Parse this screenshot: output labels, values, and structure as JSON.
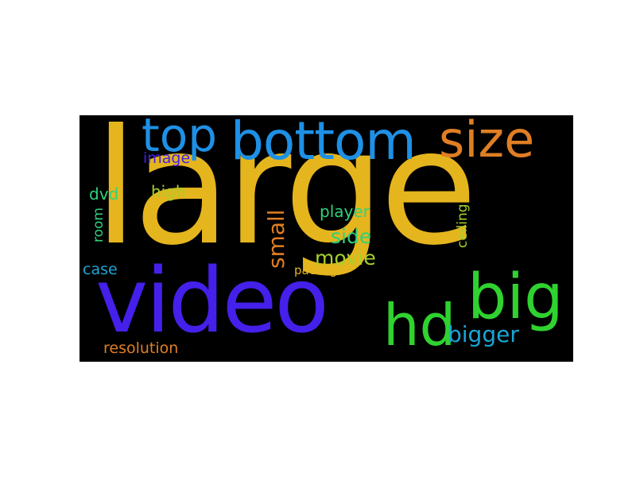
{
  "word_cloud": {
    "words": [
      {
        "text": "large",
        "color": "#e5b51e"
      },
      {
        "text": "video",
        "color": "#4420ea"
      },
      {
        "text": "bottom",
        "color": "#1e90e5"
      },
      {
        "text": "top",
        "color": "#1e90e5"
      },
      {
        "text": "size",
        "color": "#e07e24"
      },
      {
        "text": "big",
        "color": "#2fd22f"
      },
      {
        "text": "hd",
        "color": "#2fd22f"
      },
      {
        "text": "bigger",
        "color": "#1aa6d6"
      },
      {
        "text": "small",
        "color": "#e07e24"
      },
      {
        "text": "movie",
        "color": "#a3d12b"
      },
      {
        "text": "side",
        "color": "#2fd27a"
      },
      {
        "text": "player",
        "color": "#2fd27a"
      },
      {
        "text": "high",
        "color": "#a3d12b"
      },
      {
        "text": "dvd",
        "color": "#2fd27a"
      },
      {
        "text": "image",
        "color": "#4420ea"
      },
      {
        "text": "room",
        "color": "#2fd27a"
      },
      {
        "text": "case",
        "color": "#1aa6d6"
      },
      {
        "text": "package",
        "color": "#e5b51e"
      },
      {
        "text": "ceiling",
        "color": "#a3d12b"
      },
      {
        "text": "resolution",
        "color": "#e07e24"
      }
    ]
  }
}
